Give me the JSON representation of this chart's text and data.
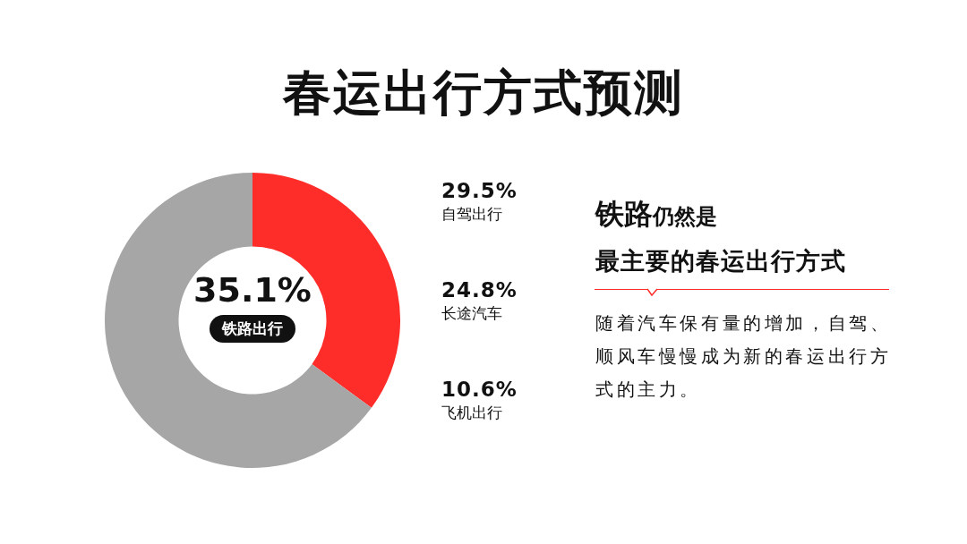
{
  "chart_data": [
    {
      "type": "donut",
      "title": "春运出行方式预测",
      "categories": [
        "铁路出行",
        null
      ],
      "values": [
        35.1,
        64.9
      ],
      "colors": [
        "#ff2d2a",
        "#a6a6a6"
      ],
      "value_labels": [
        "35.1%",
        null
      ],
      "legend": false
    },
    {
      "type": "other",
      "categories": [
        "自驾出行",
        "长途汽车",
        "飞机出行"
      ],
      "value_labels": [
        "29.5%",
        "24.8%",
        "10.6%"
      ]
    },
    {
      "type": "other",
      "annotations": [
        "铁路",
        "仍然是",
        "最主要的春运出行方式",
        "随着汽车保有量的增加，自驾、顺风车慢慢成为新的春运出行方式的主力。"
      ]
    }
  ]
}
